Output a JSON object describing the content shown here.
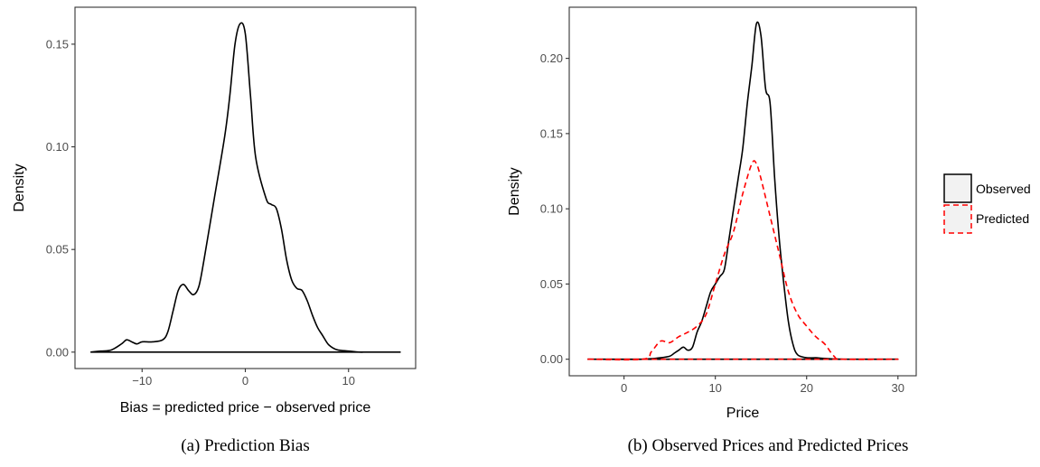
{
  "colors": {
    "observed": "#000000",
    "predicted": "#ff0000",
    "panel_border": "#333333",
    "grid": "#ebebeb",
    "legend_key_fill": "#f2f2f2"
  },
  "chart_data": [
    {
      "type": "area",
      "caption": "(a) Prediction Bias",
      "xlabel": "Bias = predicted price − observed price",
      "ylabel": "Density",
      "xlim": [
        -16.5,
        16.5
      ],
      "ylim": [
        -0.008,
        0.168
      ],
      "grid": false,
      "x_ticks": [
        -10,
        0,
        10
      ],
      "x_tick_labels": [
        "−10",
        "0",
        "10"
      ],
      "y_ticks": [
        0.0,
        0.05,
        0.1,
        0.15
      ],
      "y_tick_labels": [
        "0.00",
        "0.05",
        "0.10",
        "0.15"
      ],
      "series": [
        {
          "x": [
            -15,
            -14,
            -13,
            -12,
            -11.5,
            -11,
            -10.5,
            -10,
            -9,
            -8,
            -7.5,
            -7,
            -6.5,
            -6,
            -5.5,
            -5,
            -4.5,
            -4,
            -3,
            -2,
            -1.5,
            -1,
            -0.5,
            0,
            0.5,
            1,
            2,
            2.5,
            3,
            3.5,
            4,
            4.5,
            5,
            5.5,
            6,
            6.5,
            7,
            7.5,
            8,
            8.5,
            9,
            10,
            11,
            12,
            15
          ],
          "y": [
            0.0,
            0.0005,
            0.001,
            0.004,
            0.006,
            0.005,
            0.004,
            0.005,
            0.005,
            0.006,
            0.01,
            0.02,
            0.03,
            0.033,
            0.03,
            0.028,
            0.032,
            0.045,
            0.075,
            0.105,
            0.125,
            0.15,
            0.16,
            0.155,
            0.125,
            0.095,
            0.075,
            0.072,
            0.07,
            0.06,
            0.045,
            0.035,
            0.031,
            0.03,
            0.025,
            0.018,
            0.012,
            0.008,
            0.004,
            0.002,
            0.001,
            0.0005,
            0.0,
            0.0,
            0.0
          ]
        }
      ]
    },
    {
      "type": "area",
      "caption": "(b) Observed Prices and Predicted Prices",
      "xlabel": "Price",
      "ylabel": "Density",
      "xlim": [
        -6.0,
        32.0
      ],
      "ylim": [
        -0.011,
        0.234
      ],
      "grid": false,
      "x_ticks": [
        0,
        10,
        20,
        30
      ],
      "x_tick_labels": [
        "0",
        "10",
        "20",
        "30"
      ],
      "y_ticks": [
        0.0,
        0.05,
        0.1,
        0.15,
        0.2
      ],
      "y_tick_labels": [
        "0.00",
        "0.05",
        "0.10",
        "0.15",
        "0.20"
      ],
      "legend": {
        "position": "right",
        "entries": [
          "Observed",
          "Predicted"
        ]
      },
      "series": [
        {
          "name": "Observed",
          "style": "solid",
          "x": [
            -4,
            2,
            4,
            5,
            5.5,
            6,
            6.5,
            7,
            7.5,
            8,
            8.5,
            9,
            9.5,
            10,
            10.5,
            11,
            11.5,
            12,
            12.5,
            13,
            13.5,
            14,
            14.5,
            15,
            15.5,
            16,
            16.5,
            17,
            17.5,
            18,
            18.5,
            19,
            20,
            21,
            22,
            24,
            30
          ],
          "y": [
            0.0,
            0.0,
            0.001,
            0.002,
            0.004,
            0.006,
            0.008,
            0.006,
            0.008,
            0.018,
            0.025,
            0.035,
            0.045,
            0.05,
            0.055,
            0.06,
            0.08,
            0.1,
            0.12,
            0.14,
            0.17,
            0.195,
            0.223,
            0.215,
            0.18,
            0.17,
            0.12,
            0.08,
            0.05,
            0.025,
            0.01,
            0.003,
            0.001,
            0.001,
            0.0005,
            0.0,
            0.0
          ]
        },
        {
          "name": "Predicted",
          "style": "dashed",
          "x": [
            -4,
            2,
            3,
            4,
            5,
            6,
            7,
            8,
            9,
            10,
            11,
            12,
            13,
            14,
            14.5,
            15,
            16,
            17,
            18,
            19,
            20,
            21,
            22,
            23,
            24,
            30
          ],
          "y": [
            0.0,
            0.0,
            0.005,
            0.012,
            0.011,
            0.015,
            0.018,
            0.022,
            0.03,
            0.05,
            0.07,
            0.085,
            0.11,
            0.13,
            0.13,
            0.12,
            0.095,
            0.07,
            0.045,
            0.03,
            0.022,
            0.015,
            0.01,
            0.002,
            0.0,
            0.0
          ]
        }
      ]
    }
  ]
}
